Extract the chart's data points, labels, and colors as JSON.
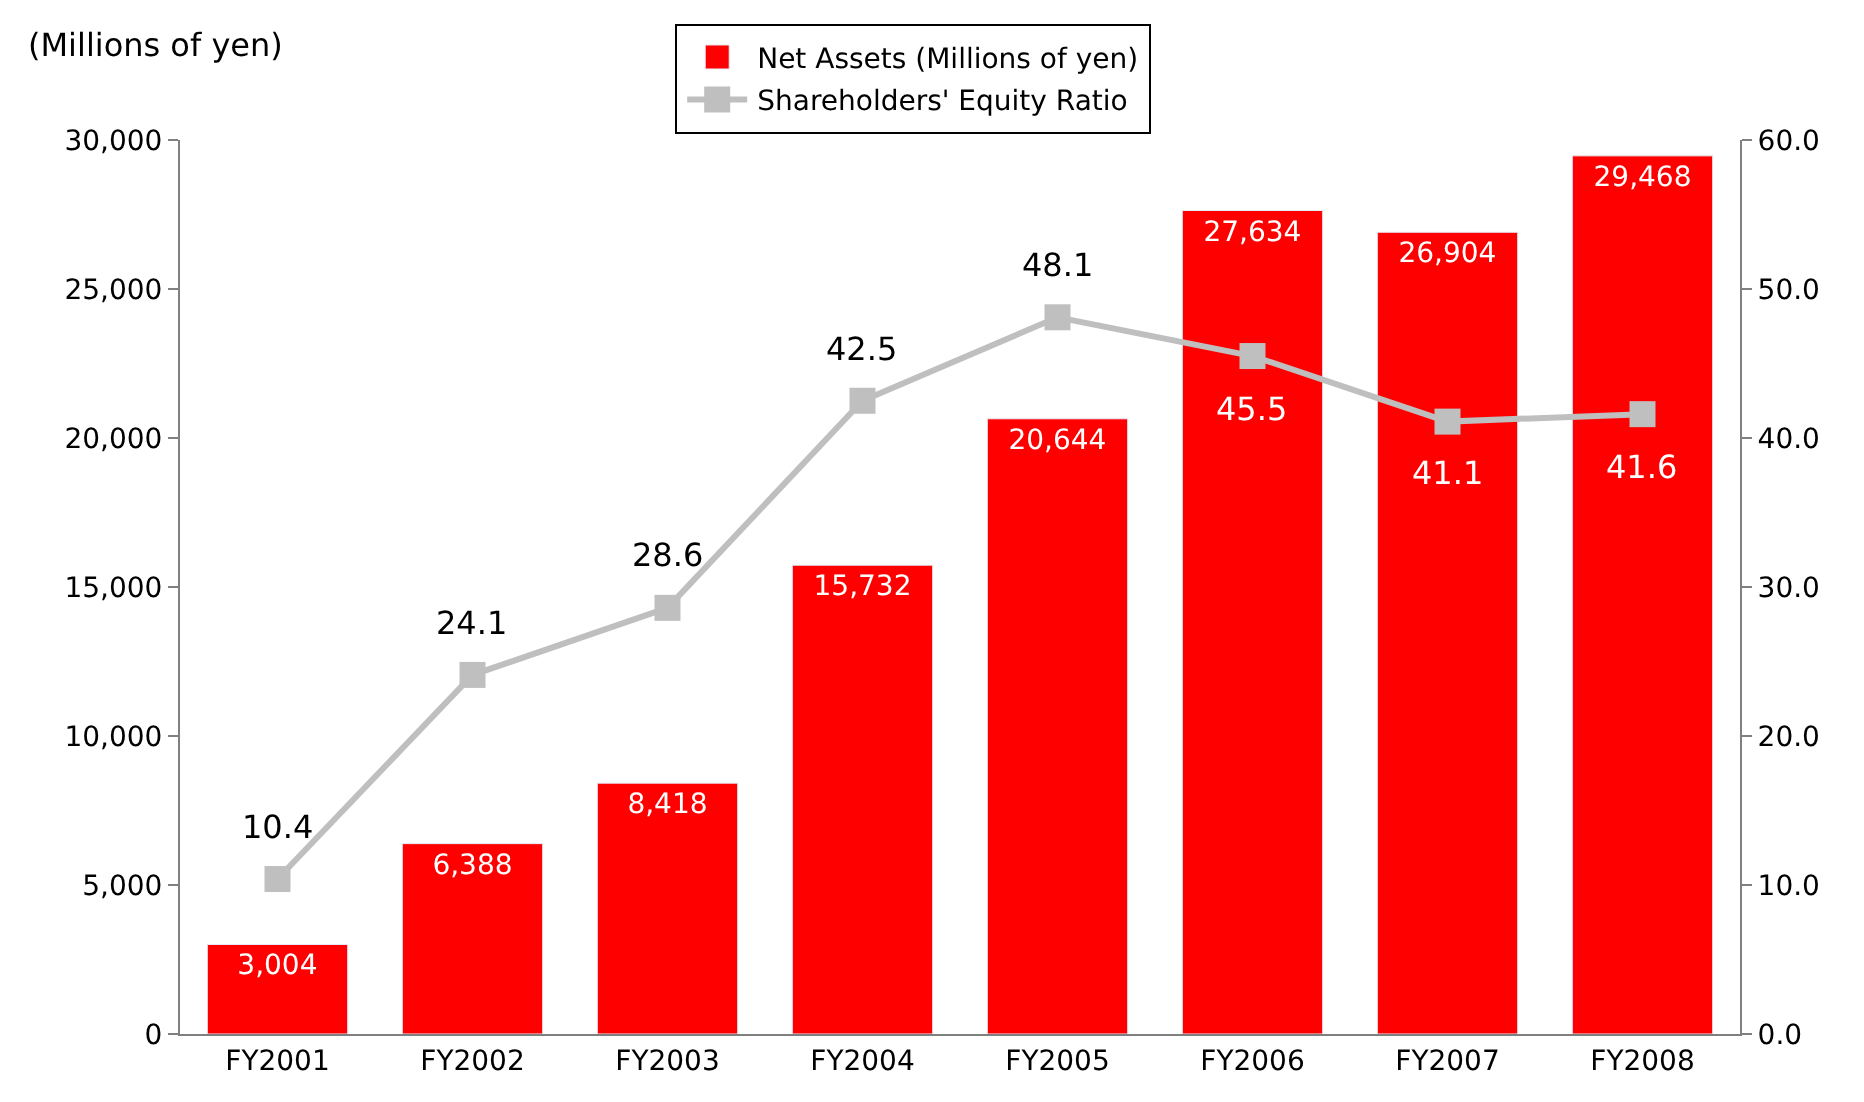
{
  "chart_data": {
    "type": "bar",
    "ylabel": "(Millions of yen)",
    "categories": [
      "FY2001",
      "FY2002",
      "FY2003",
      "FY2004",
      "FY2005",
      "FY2006",
      "FY2007",
      "FY2008"
    ],
    "series": [
      {
        "name": "Net Assets (Millions of yen)",
        "color": "#ff0000",
        "values": [
          3004,
          6388,
          8418,
          15732,
          20644,
          27634,
          26904,
          29468
        ],
        "value_labels": [
          "3,004",
          "6,388",
          "8,418",
          "15,732",
          "20,644",
          "27,634",
          "26,904",
          "29,468"
        ]
      },
      {
        "name": "Shareholders' Equity Ratio",
        "type": "line",
        "axis": "y2",
        "color": "#bfbfbf",
        "marker": "square",
        "values": [
          10.4,
          24.1,
          28.6,
          42.5,
          48.1,
          45.5,
          41.1,
          41.6
        ],
        "value_labels": [
          "10.4",
          "24.1",
          "28.6",
          "42.5",
          "48.1",
          "45.5",
          "41.1",
          "41.6"
        ]
      }
    ],
    "ylim": [
      0,
      30000
    ],
    "yticks": [
      {
        "value": 0,
        "label": "0"
      },
      {
        "value": 5000,
        "label": "5,000"
      },
      {
        "value": 10000,
        "label": "10,000"
      },
      {
        "value": 15000,
        "label": "15,000"
      },
      {
        "value": 20000,
        "label": "20,000"
      },
      {
        "value": 25000,
        "label": "25,000"
      },
      {
        "value": 30000,
        "label": "30,000"
      }
    ],
    "y2lim": [
      0,
      60
    ],
    "y2ticks": [
      {
        "value": 0,
        "label": "0.0"
      },
      {
        "value": 10,
        "label": "10.0"
      },
      {
        "value": 20,
        "label": "20.0"
      },
      {
        "value": 30,
        "label": "30.0"
      },
      {
        "value": 40,
        "label": "40.0"
      },
      {
        "value": 50,
        "label": "50.0"
      },
      {
        "value": 60,
        "label": "60.0"
      }
    ],
    "legend": "top"
  }
}
